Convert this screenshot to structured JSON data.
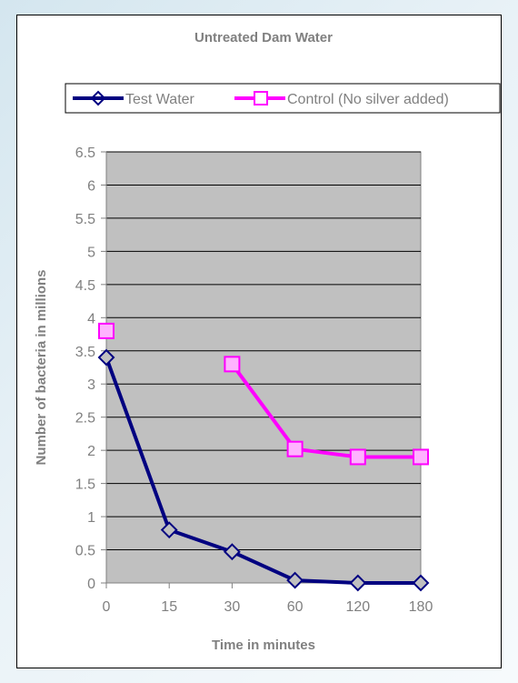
{
  "chart_data": {
    "type": "line",
    "title": "Untreated Dam Water",
    "xlabel": "Time in minutes",
    "ylabel": "Number of bacteria in millions",
    "categories": [
      "0",
      "15",
      "30",
      "60",
      "120",
      "180"
    ],
    "y_ticks": [
      "0",
      "0.5",
      "1",
      "1.5",
      "2",
      "2.5",
      "3",
      "3.5",
      "4",
      "4.5",
      "5",
      "5.5",
      "6",
      "6.5"
    ],
    "ylim": [
      0,
      6.5
    ],
    "grid": "horizontal",
    "legend_position": "top",
    "series": [
      {
        "name": "Test Water",
        "color": "#000080",
        "marker": "diamond",
        "values": [
          3.4,
          0.8,
          0.47,
          0.04,
          0.0,
          0.0
        ],
        "segments": [
          [
            0,
            1,
            2,
            3,
            4,
            5
          ]
        ]
      },
      {
        "name": "Control (No silver added)",
        "color": "#FF00FF",
        "marker": "square",
        "values": [
          3.8,
          null,
          3.3,
          2.02,
          1.9,
          1.9
        ],
        "segments": [
          [
            0
          ],
          [
            2,
            3,
            4,
            5
          ]
        ]
      }
    ]
  }
}
